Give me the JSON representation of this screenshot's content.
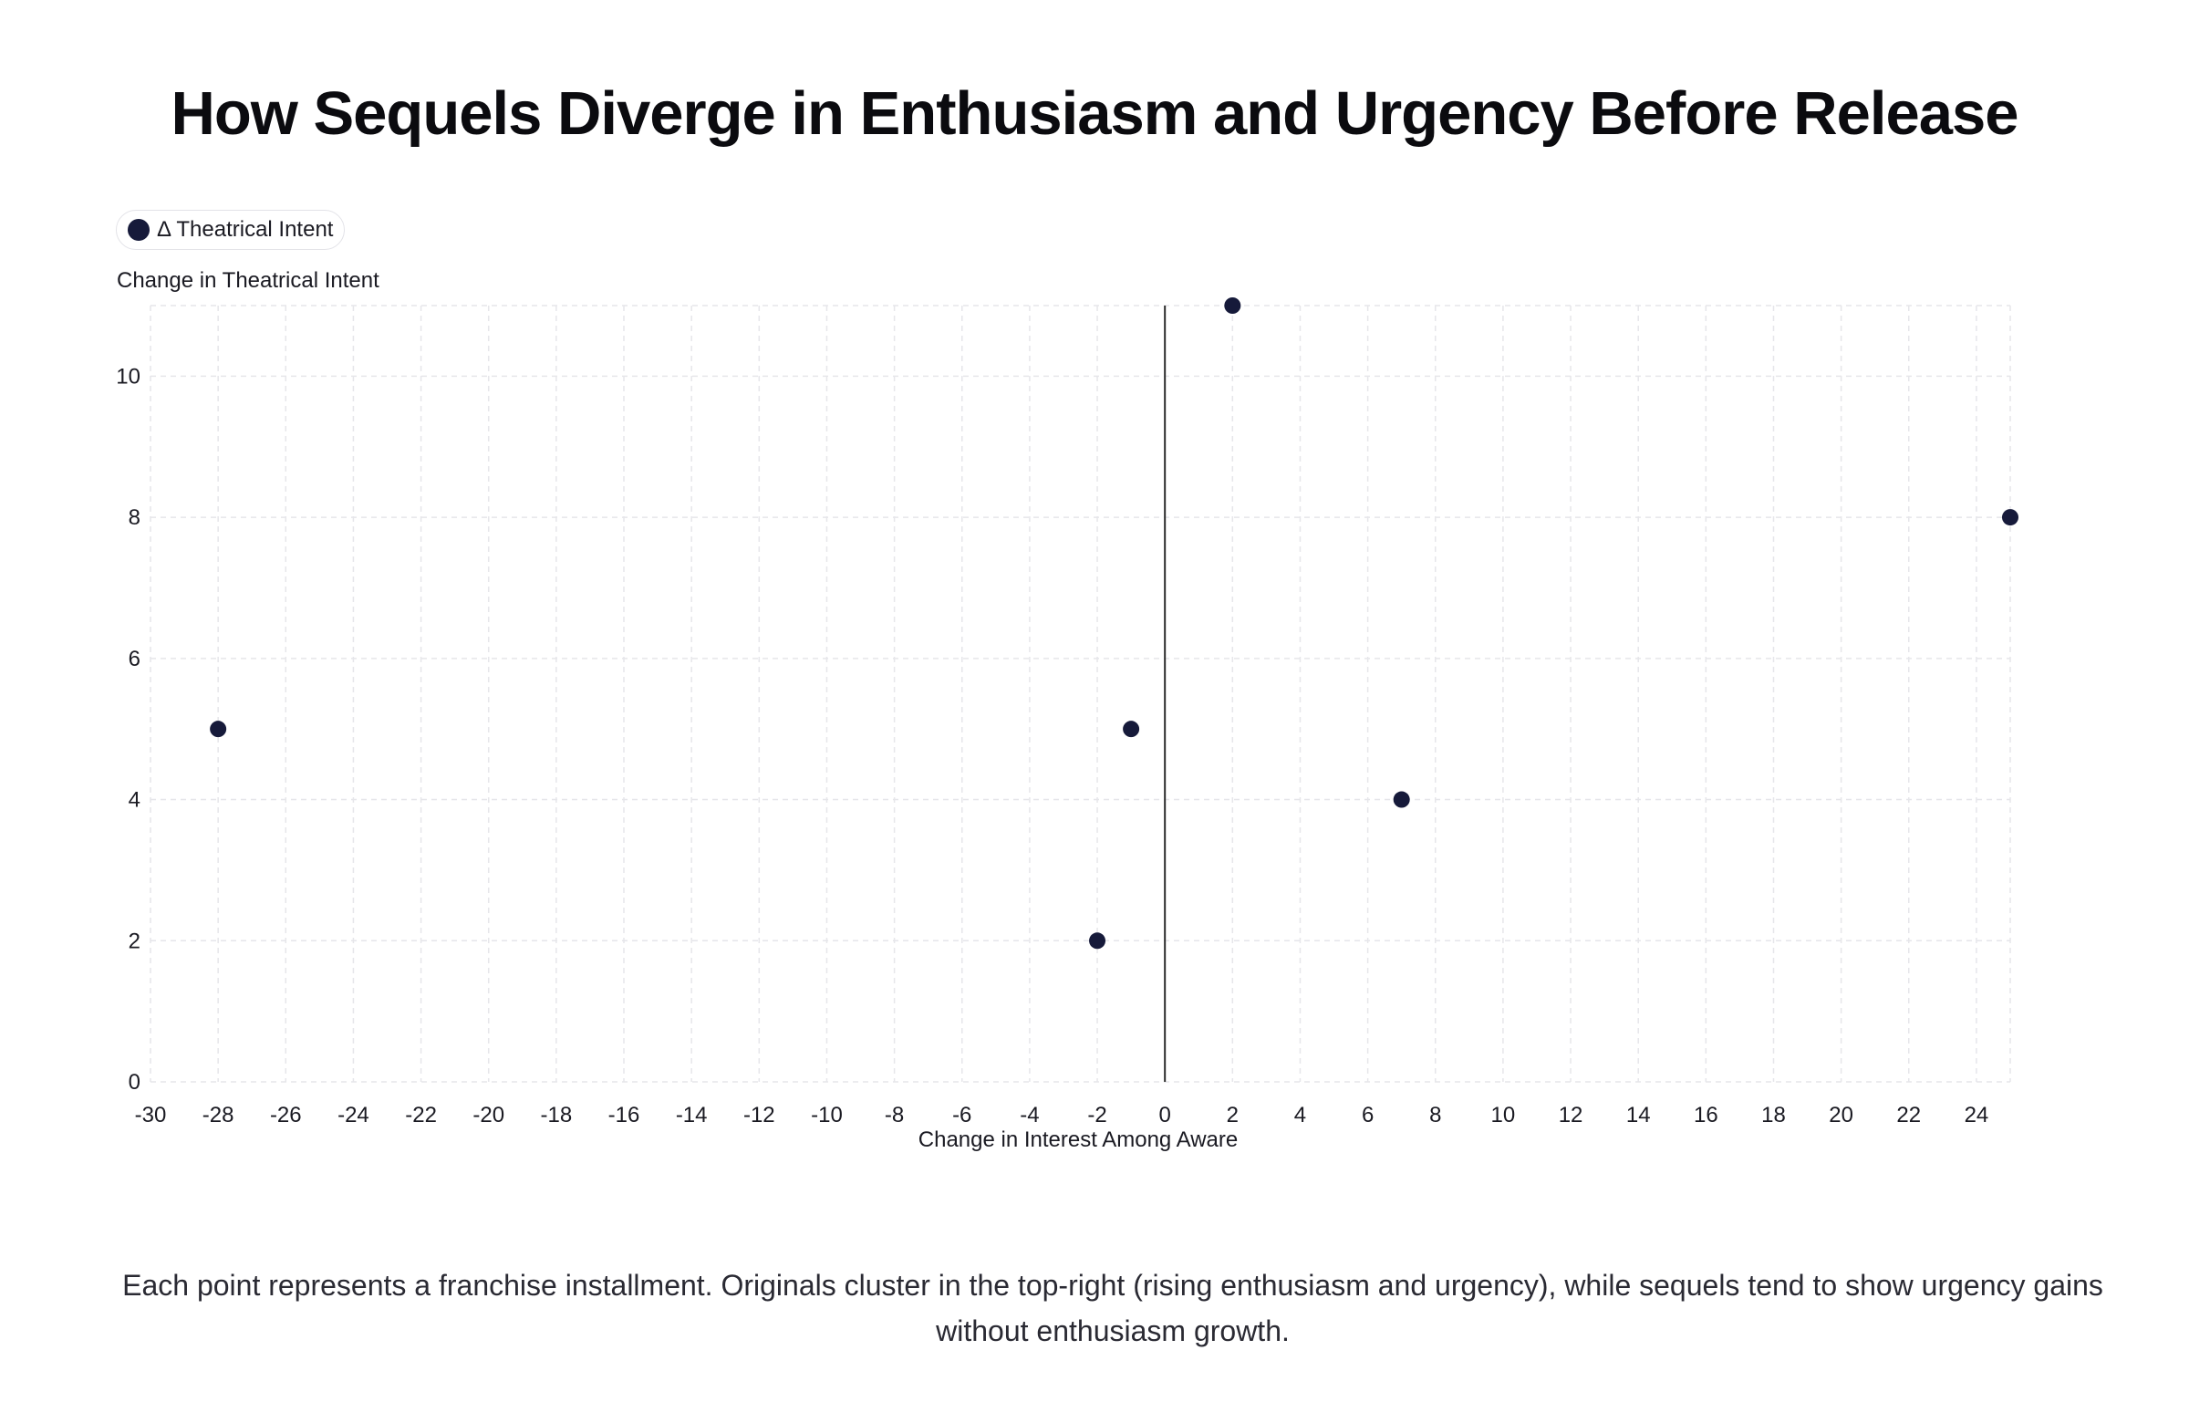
{
  "title": "How Sequels Diverge in Enthusiasm and Urgency Before Release",
  "caption": "Each point represents a franchise installment. Originals cluster in the top-right (rising enthusiasm and urgency), while sequels tend to show urgency gains without enthusiasm growth.",
  "colors": {
    "point": "#161a3a",
    "grid": "#e6e6ea",
    "zero_line": "#2b2b2b"
  },
  "chart_data": {
    "type": "scatter",
    "title": "How Sequels Diverge in Enthusiasm and Urgency Before Release",
    "xlabel": "Change in Interest Among Aware",
    "ylabel": "Change in Theatrical Intent",
    "xlim": [
      -30,
      25
    ],
    "ylim": [
      0,
      11
    ],
    "x_ticks": [
      -30,
      -28,
      -26,
      -24,
      -22,
      -20,
      -18,
      -16,
      -14,
      -12,
      -10,
      -8,
      -6,
      -4,
      -2,
      0,
      2,
      4,
      6,
      8,
      10,
      12,
      14,
      16,
      18,
      20,
      22,
      24
    ],
    "y_ticks": [
      0,
      2,
      4,
      6,
      8,
      10
    ],
    "grid": true,
    "legend_position": "top-left",
    "series": [
      {
        "name": "Δ Theatrical Intent",
        "points": [
          {
            "x": -28,
            "y": 5
          },
          {
            "x": -2,
            "y": 2
          },
          {
            "x": -1,
            "y": 5
          },
          {
            "x": 2,
            "y": 11
          },
          {
            "x": 7,
            "y": 4
          },
          {
            "x": 25,
            "y": 8
          }
        ]
      }
    ]
  }
}
